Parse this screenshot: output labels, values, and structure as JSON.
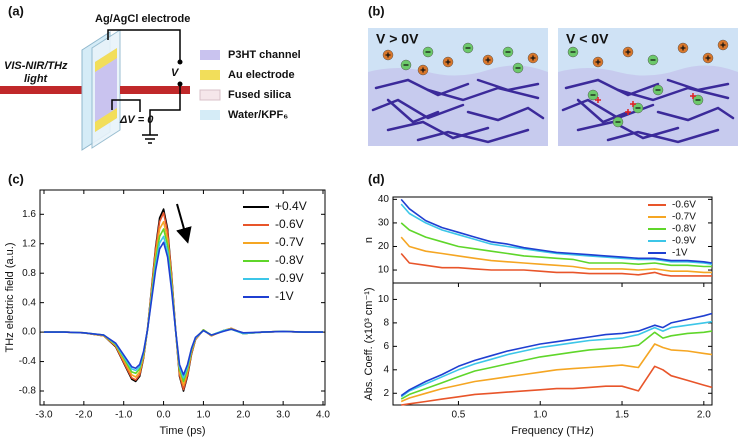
{
  "panel_labels": [
    "(a)",
    "(b)",
    "(c)",
    "(d)"
  ],
  "diagram_a": {
    "beam_label": [
      "VIS-NIR/THz",
      "light"
    ],
    "electrode_label": "Ag/AgCl electrode",
    "voltage_label": "V",
    "delta_label": "ΔV = 0",
    "legend": [
      "P3HT channel",
      "Au electrode",
      "Fused silica",
      "Water/KPF₆"
    ]
  },
  "diagram_b": {
    "left_label": "V > 0V",
    "right_label": "V < 0V"
  },
  "chart_data": [
    {
      "type": "line",
      "xlabel": "Time (ps)",
      "ylabel": "THz electric field (a.u.)",
      "legend": "upper right",
      "xlim": [
        -3.1,
        4.05
      ],
      "ylim": [
        -0.99,
        1.93
      ],
      "xticks": [
        {
          "value": -3,
          "label": "-3.0"
        },
        {
          "value": -2,
          "label": "-2.0"
        },
        {
          "value": -1,
          "label": "-1.0"
        },
        {
          "value": 0,
          "label": "0.0"
        },
        {
          "value": 1,
          "label": "1.0"
        },
        {
          "value": 2,
          "label": "2.0"
        },
        {
          "value": 3,
          "label": "3.0"
        },
        {
          "value": 4,
          "label": "4.0"
        }
      ],
      "yticks": [
        -0.8,
        -0.4,
        {
          "value": 0,
          "label": "0.0"
        },
        0.4,
        0.8,
        1.2,
        1.6
      ],
      "x": [
        -3,
        -2.5,
        -2,
        -1.5,
        -1.2,
        -1,
        -0.8,
        -0.7,
        -0.6,
        -0.5,
        -0.4,
        -0.3,
        -0.2,
        -0.1,
        0,
        0.1,
        0.2,
        0.3,
        0.4,
        0.5,
        0.6,
        0.7,
        0.8,
        1,
        1.2,
        1.5,
        1.7,
        2,
        2.5,
        3,
        3.5,
        4
      ],
      "series": [
        {
          "name": "+0.4V",
          "color": "#000000",
          "values": [
            0,
            0,
            -0.01,
            -0.05,
            -0.2,
            -0.42,
            -0.64,
            -0.67,
            -0.6,
            -0.35,
            0.05,
            0.6,
            1.15,
            1.55,
            1.67,
            1.4,
            0.8,
            0.05,
            -0.6,
            -0.8,
            -0.6,
            -0.3,
            -0.1,
            0.03,
            -0.05,
            0.02,
            0.05,
            -0.02,
            0,
            0.01,
            0,
            0
          ]
        },
        {
          "name": "-0.6V",
          "color": "#e8552a",
          "values": [
            0,
            0,
            -0.01,
            -0.05,
            -0.19,
            -0.41,
            -0.62,
            -0.65,
            -0.58,
            -0.34,
            0.05,
            0.58,
            1.12,
            1.5,
            1.62,
            1.36,
            0.78,
            0.05,
            -0.58,
            -0.78,
            -0.58,
            -0.29,
            -0.1,
            0.03,
            -0.05,
            0.02,
            0.05,
            -0.02,
            0,
            0.01,
            0,
            0
          ]
        },
        {
          "name": "-0.7V",
          "color": "#f5a623",
          "values": [
            0,
            0,
            -0.01,
            -0.05,
            -0.18,
            -0.38,
            -0.58,
            -0.61,
            -0.54,
            -0.32,
            0.04,
            0.54,
            1.04,
            1.4,
            1.5,
            1.26,
            0.72,
            0.04,
            -0.54,
            -0.72,
            -0.54,
            -0.27,
            -0.09,
            0.03,
            -0.05,
            0.02,
            0.05,
            -0.02,
            0,
            0.01,
            0,
            0
          ]
        },
        {
          "name": "-0.8V",
          "color": "#5fd62a",
          "values": [
            0,
            0,
            -0.01,
            -0.04,
            -0.17,
            -0.35,
            -0.54,
            -0.56,
            -0.5,
            -0.29,
            0.04,
            0.5,
            0.97,
            1.3,
            1.4,
            1.18,
            0.67,
            0.04,
            -0.5,
            -0.67,
            -0.5,
            -0.25,
            -0.08,
            0.03,
            -0.04,
            0.02,
            0.04,
            -0.02,
            0,
            0.01,
            0,
            0
          ]
        },
        {
          "name": "-0.9V",
          "color": "#3cc6e8",
          "values": [
            0,
            0,
            -0.01,
            -0.04,
            -0.16,
            -0.33,
            -0.5,
            -0.52,
            -0.47,
            -0.27,
            0.04,
            0.47,
            0.9,
            1.21,
            1.3,
            1.09,
            0.62,
            0.04,
            -0.47,
            -0.62,
            -0.47,
            -0.23,
            -0.08,
            0.02,
            -0.04,
            0.02,
            0.04,
            -0.02,
            0,
            0.01,
            0,
            0
          ]
        },
        {
          "name": "-1V",
          "color": "#1f3fd1",
          "values": [
            0,
            0,
            -0.01,
            -0.04,
            -0.15,
            -0.31,
            -0.47,
            -0.49,
            -0.44,
            -0.26,
            0.04,
            0.44,
            0.84,
            1.13,
            1.22,
            1.02,
            0.58,
            0.04,
            -0.44,
            -0.58,
            -0.44,
            -0.22,
            -0.07,
            0.02,
            -0.04,
            0.01,
            0.04,
            -0.01,
            0,
            0.01,
            0,
            0
          ]
        }
      ]
    },
    {
      "type": "line",
      "ylabel": "n",
      "legend": "upper right",
      "xlim": [
        0.1,
        2.05
      ],
      "ylim": [
        4.5,
        41
      ],
      "yticks": [
        10,
        20,
        30,
        40
      ],
      "x": [
        0.15,
        0.2,
        0.3,
        0.4,
        0.5,
        0.6,
        0.7,
        0.8,
        0.9,
        1.0,
        1.1,
        1.2,
        1.3,
        1.4,
        1.5,
        1.6,
        1.7,
        1.75,
        1.8,
        1.9,
        2.0,
        2.05
      ],
      "series": [
        {
          "name": "-0.6V",
          "color": "#e8552a",
          "values": [
            17,
            13,
            12,
            11,
            11,
            10.5,
            10,
            10,
            10,
            9.5,
            9,
            9,
            8.5,
            8.5,
            8.5,
            8,
            9,
            8,
            7.5,
            7.5,
            7.5,
            7.5
          ]
        },
        {
          "name": "-0.7V",
          "color": "#f5a623",
          "values": [
            24,
            20,
            18,
            17,
            16,
            15,
            14,
            13.5,
            13,
            12.5,
            12,
            11.5,
            10.5,
            10.5,
            10.5,
            10,
            10.5,
            10,
            9.5,
            9.5,
            9,
            9
          ]
        },
        {
          "name": "-0.8V",
          "color": "#5fd62a",
          "values": [
            30,
            27,
            24,
            22,
            20,
            19,
            18,
            17,
            16,
            15.5,
            15,
            14.5,
            13,
            13,
            13,
            12.5,
            13,
            12.5,
            12,
            12,
            11.5,
            11.5
          ]
        },
        {
          "name": "-0.9V",
          "color": "#3cc6e8",
          "values": [
            38,
            34,
            30,
            27,
            25,
            23,
            21,
            20,
            19,
            18,
            17,
            16.5,
            16,
            15.5,
            15,
            14.5,
            14.5,
            14,
            13.5,
            13.5,
            13,
            12.5
          ]
        },
        {
          "name": "-1V",
          "color": "#1f3fd1",
          "values": [
            40,
            36,
            31,
            28,
            26,
            24,
            22,
            21,
            19.5,
            18.5,
            17.5,
            17,
            16.5,
            16,
            15.5,
            15,
            15,
            14.5,
            14,
            14,
            13.5,
            13
          ]
        }
      ]
    },
    {
      "type": "line",
      "xlabel": "Frequency (THz)",
      "ylabel": "Abs. Coeff. (x10³ cm⁻¹)",
      "xlim": [
        0.1,
        2.05
      ],
      "ylim": [
        1,
        11.4
      ],
      "yticks": [
        2,
        4,
        6,
        8,
        10
      ],
      "xticks": [
        0.5,
        {
          "value": 1,
          "label": "1.0"
        },
        1.5,
        {
          "value": 2,
          "label": "2.0"
        }
      ],
      "x": [
        0.15,
        0.2,
        0.3,
        0.4,
        0.5,
        0.6,
        0.7,
        0.8,
        0.9,
        1.0,
        1.1,
        1.2,
        1.3,
        1.4,
        1.5,
        1.6,
        1.7,
        1.75,
        1.8,
        1.9,
        2.0,
        2.05
      ],
      "series": [
        {
          "color": "#e8552a",
          "values": [
            1,
            1.1,
            1.3,
            1.5,
            1.7,
            1.9,
            2,
            2.1,
            2.2,
            2.3,
            2.4,
            2.4,
            2.5,
            2.6,
            2.6,
            2.2,
            4.3,
            4,
            3.5,
            3.1,
            2.7,
            2.5
          ]
        },
        {
          "color": "#f5a623",
          "values": [
            1.3,
            1.6,
            2,
            2.4,
            2.7,
            3,
            3.2,
            3.4,
            3.6,
            3.8,
            4,
            4.1,
            4.2,
            4.3,
            4.4,
            4.2,
            6.2,
            5.9,
            5.7,
            5.6,
            5.4,
            5.3
          ]
        },
        {
          "color": "#5fd62a",
          "values": [
            1.5,
            1.9,
            2.4,
            2.9,
            3.4,
            3.9,
            4.2,
            4.5,
            4.8,
            5.1,
            5.3,
            5.5,
            5.7,
            5.8,
            5.9,
            6.1,
            7.2,
            6.7,
            6.9,
            7.1,
            7.2,
            7.3
          ]
        },
        {
          "color": "#3cc6e8",
          "values": [
            1.7,
            2.2,
            2.8,
            3.4,
            4,
            4.5,
            4.9,
            5.3,
            5.6,
            5.9,
            6.1,
            6.3,
            6.5,
            6.6,
            6.7,
            7,
            7.6,
            7.3,
            7.6,
            7.8,
            8,
            8.1
          ]
        },
        {
          "color": "#1f3fd1",
          "values": [
            1.8,
            2.3,
            3,
            3.6,
            4.3,
            4.8,
            5.2,
            5.6,
            5.9,
            6.2,
            6.4,
            6.6,
            6.8,
            7,
            7.1,
            7.3,
            7.8,
            7.6,
            8,
            8.3,
            8.6,
            8.8
          ]
        }
      ]
    }
  ]
}
